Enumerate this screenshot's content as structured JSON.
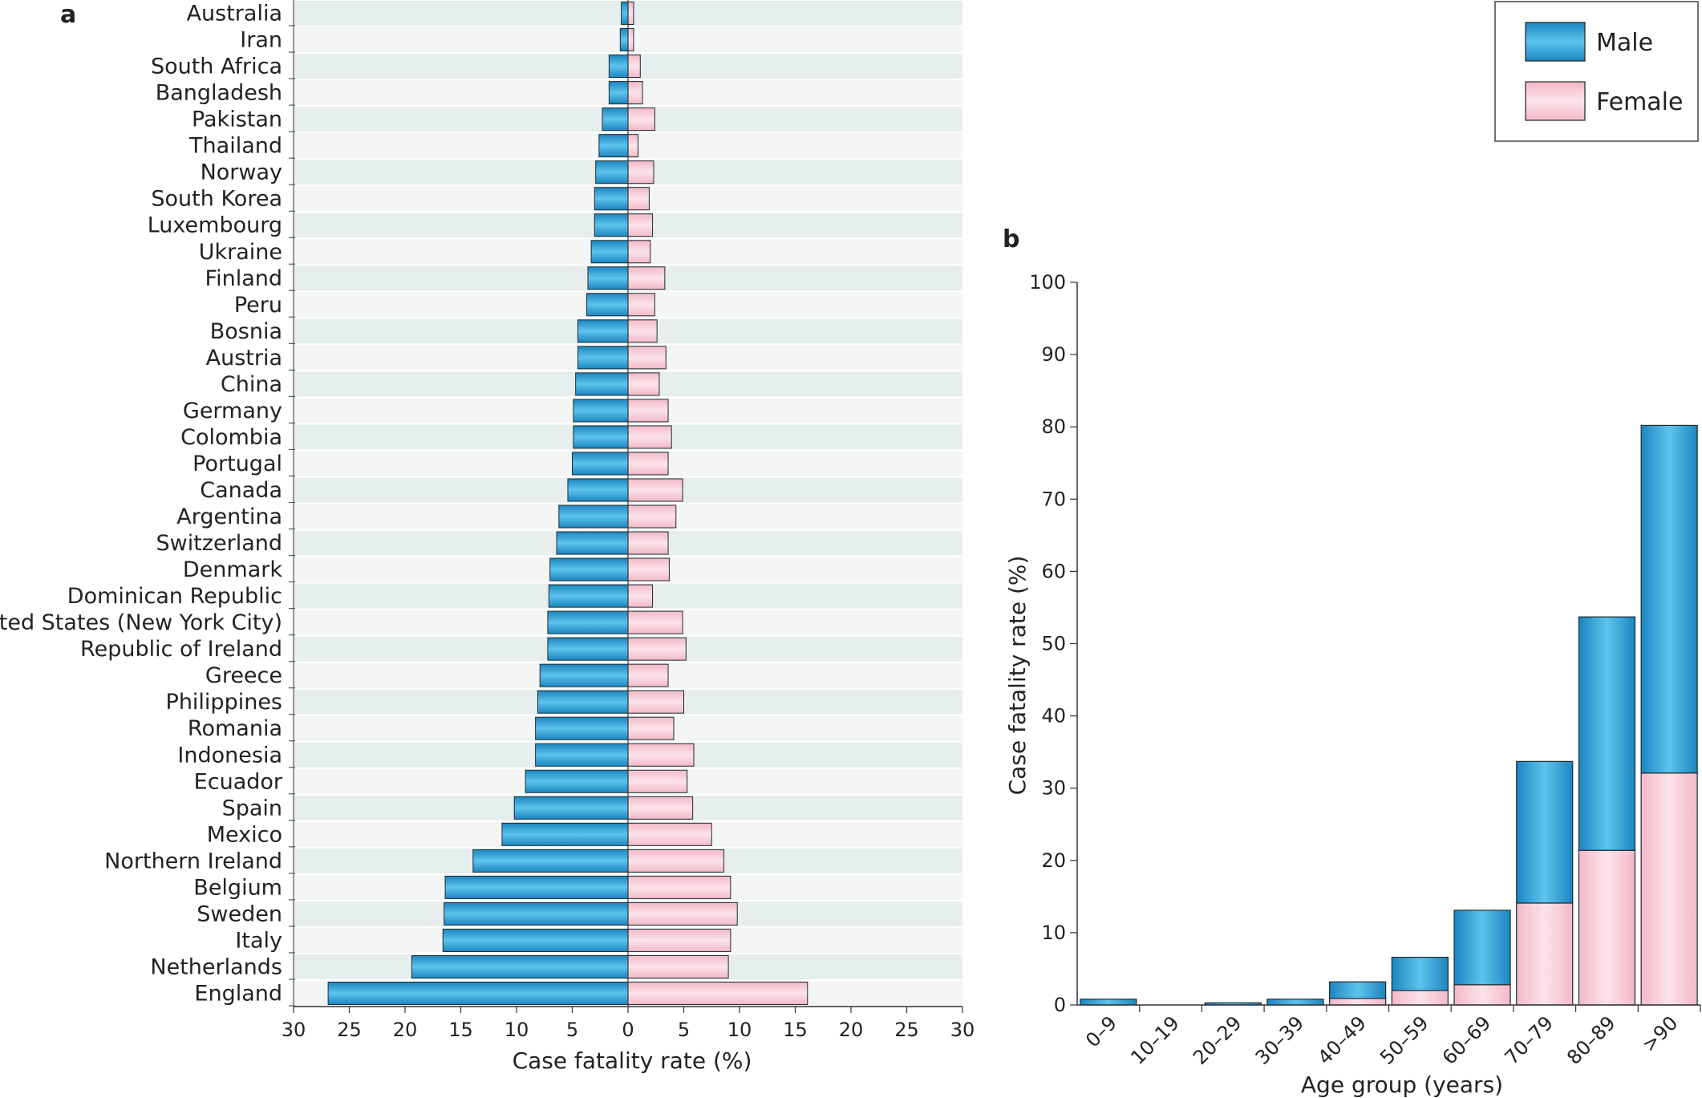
{
  "chart_data": [
    {
      "panel": "a",
      "type": "bar",
      "orientation": "horizontal-diverging",
      "xlabel": "Case fatality rate (%)",
      "xticks": [
        "30",
        "25",
        "20",
        "15",
        "10",
        "5",
        "0",
        "5",
        "10",
        "15",
        "20",
        "25",
        "30"
      ],
      "xlim": [
        -30,
        30
      ],
      "categories": [
        "Australia",
        "Iran",
        "South Africa",
        "Bangladesh",
        "Pakistan",
        "Thailand",
        "Norway",
        "South Korea",
        "Luxembourg",
        "Ukraine",
        "Finland",
        "Peru",
        "Bosnia",
        "Austria",
        "China",
        "Germany",
        "Colombia",
        "Portugal",
        "Canada",
        "Argentina",
        "Switzerland",
        "Denmark",
        "Dominican Republic",
        "United States (New York City)",
        "Republic of Ireland",
        "Greece",
        "Philippines",
        "Romania",
        "Indonesia",
        "Ecuador",
        "Spain",
        "Mexico",
        "Northern Ireland",
        "Belgium",
        "Sweden",
        "Italy",
        "Netherlands",
        "England"
      ],
      "series": [
        {
          "name": "Male",
          "values": [
            0.6,
            0.7,
            1.7,
            1.7,
            2.3,
            2.6,
            2.9,
            3.0,
            3.0,
            3.3,
            3.6,
            3.7,
            4.5,
            4.5,
            4.7,
            4.9,
            4.9,
            5.0,
            5.4,
            6.2,
            6.4,
            7.0,
            7.1,
            7.2,
            7.2,
            7.9,
            8.1,
            8.3,
            8.3,
            9.2,
            10.2,
            11.3,
            13.9,
            16.4,
            16.5,
            16.6,
            19.4,
            26.9
          ]
        },
        {
          "name": "Female",
          "values": [
            0.5,
            0.5,
            1.1,
            1.3,
            2.4,
            0.9,
            2.3,
            1.9,
            2.2,
            2.0,
            3.3,
            2.4,
            2.6,
            3.4,
            2.8,
            3.6,
            3.9,
            3.6,
            4.9,
            4.3,
            3.6,
            3.7,
            2.2,
            4.9,
            5.2,
            3.6,
            5.0,
            4.1,
            5.9,
            5.3,
            5.8,
            7.5,
            8.6,
            9.2,
            9.8,
            9.2,
            9.0,
            16.1
          ]
        }
      ]
    },
    {
      "panel": "b",
      "type": "bar",
      "stacked": true,
      "xlabel": "Age group (years)",
      "ylabel": "Case fatality rate (%)",
      "ylim": [
        0,
        100
      ],
      "yticks": [
        "0",
        "10",
        "20",
        "30",
        "40",
        "50",
        "60",
        "70",
        "80",
        "90",
        "100"
      ],
      "categories": [
        "0–9",
        "10–19",
        "20–29",
        "30–39",
        "40–49",
        "50–59",
        "60–69",
        "70–79",
        "80–89",
        ">90"
      ],
      "series": [
        {
          "name": "Female",
          "values": [
            0.0,
            0.0,
            0.0,
            0.0,
            0.9,
            2.0,
            2.8,
            14.1,
            21.4,
            32.1
          ]
        },
        {
          "name": "Male",
          "values": [
            0.8,
            0.0,
            0.3,
            0.8,
            2.3,
            4.6,
            10.3,
            19.6,
            32.3,
            48.1
          ]
        }
      ]
    }
  ],
  "legend": {
    "male_label": "Male",
    "female_label": "Female",
    "male_color": "#2a9bd0",
    "female_color": "#f5c6d3"
  },
  "panel_labels": {
    "a": "a",
    "b": "b"
  }
}
